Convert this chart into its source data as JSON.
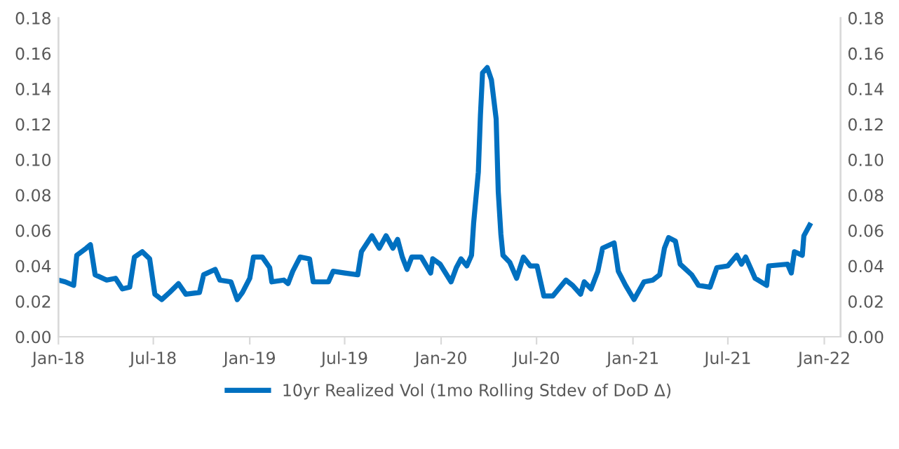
{
  "chart_data": {
    "type": "line",
    "legend": "bottom",
    "grid": false,
    "marker": "none",
    "line_style": "solid",
    "xlim": [
      "2018-01-01",
      "2022-02-01"
    ],
    "xticks": [
      {
        "value": "2018-01-01",
        "label": "Jan-18"
      },
      {
        "value": "2018-07-01",
        "label": "Jul-18"
      },
      {
        "value": "2019-01-01",
        "label": "Jan-19"
      },
      {
        "value": "2019-07-01",
        "label": "Jul-19"
      },
      {
        "value": "2020-01-01",
        "label": "Jan-20"
      },
      {
        "value": "2020-07-01",
        "label": "Jul-20"
      },
      {
        "value": "2021-01-01",
        "label": "Jan-21"
      },
      {
        "value": "2021-07-01",
        "label": "Jul-21"
      },
      {
        "value": "2022-01-01",
        "label": "Jan-22"
      }
    ],
    "ylim": [
      0,
      0.18
    ],
    "yticks": [
      {
        "value": 0,
        "label": "0.00"
      },
      {
        "value": 0.02,
        "label": "0.02"
      },
      {
        "value": 0.04,
        "label": "0.04"
      },
      {
        "value": 0.06,
        "label": "0.06"
      },
      {
        "value": 0.08,
        "label": "0.08"
      },
      {
        "value": 0.1,
        "label": "0.10"
      },
      {
        "value": 0.12,
        "label": "0.12"
      },
      {
        "value": 0.14,
        "label": "0.14"
      },
      {
        "value": 0.16,
        "label": "0.16"
      },
      {
        "value": 0.18,
        "label": "0.18"
      }
    ],
    "y2lim": [
      0,
      0.18
    ],
    "y2ticks": [
      {
        "value": 0,
        "label": "0.00"
      },
      {
        "value": 0.02,
        "label": "0.02"
      },
      {
        "value": 0.04,
        "label": "0.04"
      },
      {
        "value": 0.06,
        "label": "0.06"
      },
      {
        "value": 0.08,
        "label": "0.08"
      },
      {
        "value": 0.1,
        "label": "0.10"
      },
      {
        "value": 0.12,
        "label": "0.12"
      },
      {
        "value": 0.14,
        "label": "0.14"
      },
      {
        "value": 0.16,
        "label": "0.16"
      },
      {
        "value": 0.18,
        "label": "0.18"
      }
    ],
    "series": [
      {
        "name": "10yr Realized Vol (1mo Rolling Stdev of DoD Δ)",
        "color": "#0070c0",
        "x": [
          "2018-01-01",
          "2018-01-14",
          "2018-01-30",
          "2018-02-05",
          "2018-02-23",
          "2018-03-03",
          "2018-03-12",
          "2018-04-03",
          "2018-04-20",
          "2018-05-03",
          "2018-05-17",
          "2018-05-26",
          "2018-06-10",
          "2018-06-24",
          "2018-07-04",
          "2018-07-17",
          "2018-08-01",
          "2018-08-18",
          "2018-09-01",
          "2018-09-27",
          "2018-10-05",
          "2018-10-27",
          "2018-11-05",
          "2018-11-26",
          "2018-12-08",
          "2018-12-18",
          "2019-01-01",
          "2019-01-08",
          "2019-01-25",
          "2019-02-08",
          "2019-02-12",
          "2019-03-07",
          "2019-03-15",
          "2019-03-24",
          "2019-04-07",
          "2019-04-25",
          "2019-05-02",
          "2019-05-31",
          "2019-06-09",
          "2019-07-01",
          "2019-07-26",
          "2019-08-02",
          "2019-08-22",
          "2019-09-05",
          "2019-09-18",
          "2019-10-01",
          "2019-10-10",
          "2019-10-19",
          "2019-10-28",
          "2019-11-06",
          "2019-11-24",
          "2019-12-12",
          "2019-12-16",
          "2019-12-30",
          "2020-01-20",
          "2020-01-30",
          "2020-02-08",
          "2020-02-19",
          "2020-02-28",
          "2020-03-03",
          "2020-03-12",
          "2020-03-16",
          "2020-03-20",
          "2020-03-29",
          "2020-04-06",
          "2020-04-15",
          "2020-04-19",
          "2020-04-24",
          "2020-04-28",
          "2020-05-11",
          "2020-05-24",
          "2020-06-06",
          "2020-06-19",
          "2020-07-02",
          "2020-07-15",
          "2020-08-01",
          "2020-08-26",
          "2020-09-08",
          "2020-09-23",
          "2020-09-30",
          "2020-10-13",
          "2020-10-26",
          "2020-11-04",
          "2020-11-26",
          "2020-12-04",
          "2020-12-18",
          "2021-01-03",
          "2021-01-22",
          "2021-02-08",
          "2021-02-21",
          "2021-03-02",
          "2021-03-10",
          "2021-03-23",
          "2021-04-01",
          "2021-04-23",
          "2021-05-06",
          "2021-05-28",
          "2021-06-10",
          "2021-07-01",
          "2021-07-18",
          "2021-07-27",
          "2021-08-04",
          "2021-08-22",
          "2021-09-13",
          "2021-09-17",
          "2021-10-23",
          "2021-10-30",
          "2021-11-05",
          "2021-11-20",
          "2021-11-23",
          "2021-12-04"
        ],
        "values": [
          0.032,
          0.031,
          0.029,
          0.046,
          0.05,
          0.052,
          0.035,
          0.032,
          0.033,
          0.027,
          0.028,
          0.045,
          0.048,
          0.044,
          0.024,
          0.021,
          0.025,
          0.03,
          0.024,
          0.025,
          0.035,
          0.038,
          0.032,
          0.031,
          0.021,
          0.025,
          0.033,
          0.045,
          0.045,
          0.039,
          0.031,
          0.032,
          0.03,
          0.037,
          0.045,
          0.044,
          0.031,
          0.031,
          0.037,
          0.036,
          0.035,
          0.048,
          0.057,
          0.05,
          0.057,
          0.05,
          0.055,
          0.045,
          0.038,
          0.045,
          0.045,
          0.036,
          0.044,
          0.041,
          0.031,
          0.039,
          0.044,
          0.04,
          0.046,
          0.064,
          0.093,
          0.125,
          0.149,
          0.152,
          0.145,
          0.123,
          0.082,
          0.058,
          0.046,
          0.042,
          0.033,
          0.045,
          0.04,
          0.04,
          0.023,
          0.023,
          0.032,
          0.029,
          0.024,
          0.031,
          0.027,
          0.037,
          0.05,
          0.053,
          0.037,
          0.029,
          0.021,
          0.031,
          0.032,
          0.035,
          0.05,
          0.056,
          0.054,
          0.041,
          0.035,
          0.029,
          0.028,
          0.039,
          0.04,
          0.046,
          0.041,
          0.045,
          0.033,
          0.029,
          0.04,
          0.041,
          0.036,
          0.048,
          0.046,
          0.057,
          0.063
        ]
      }
    ]
  }
}
